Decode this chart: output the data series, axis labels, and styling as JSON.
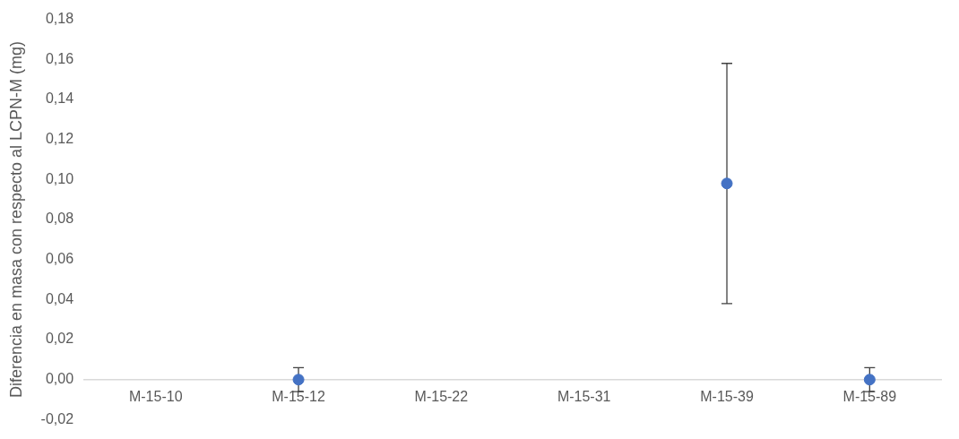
{
  "chart_data": {
    "type": "scatter",
    "ylabel": "Diferencia en masa con respecto al LCPN-M (mg)",
    "categories": [
      "M-15-10",
      "M-15-12",
      "M-15-22",
      "M-15-31",
      "M-15-39",
      "M-15-89"
    ],
    "values": [
      null,
      0,
      null,
      null,
      0.098,
      0
    ],
    "errors": [
      null,
      0.006,
      null,
      null,
      0.06,
      0.006
    ],
    "color": "#4472c4",
    "marker": "circle",
    "grid": false,
    "legend": false,
    "ylim": [
      -0.02,
      0.18
    ],
    "yticks": [
      {
        "value": -0.02,
        "label": "-0,02"
      },
      {
        "value": 0,
        "label": "0,00"
      },
      {
        "value": 0.02,
        "label": "0,02"
      },
      {
        "value": 0.04,
        "label": "0,04"
      },
      {
        "value": 0.06,
        "label": "0,06"
      },
      {
        "value": 0.08,
        "label": "0,08"
      },
      {
        "value": 0.1,
        "label": "0,10"
      },
      {
        "value": 0.12,
        "label": "0,12"
      },
      {
        "value": 0.14,
        "label": "0,14"
      },
      {
        "value": 0.16,
        "label": "0,16"
      },
      {
        "value": 0.18,
        "label": "0,18"
      }
    ]
  }
}
